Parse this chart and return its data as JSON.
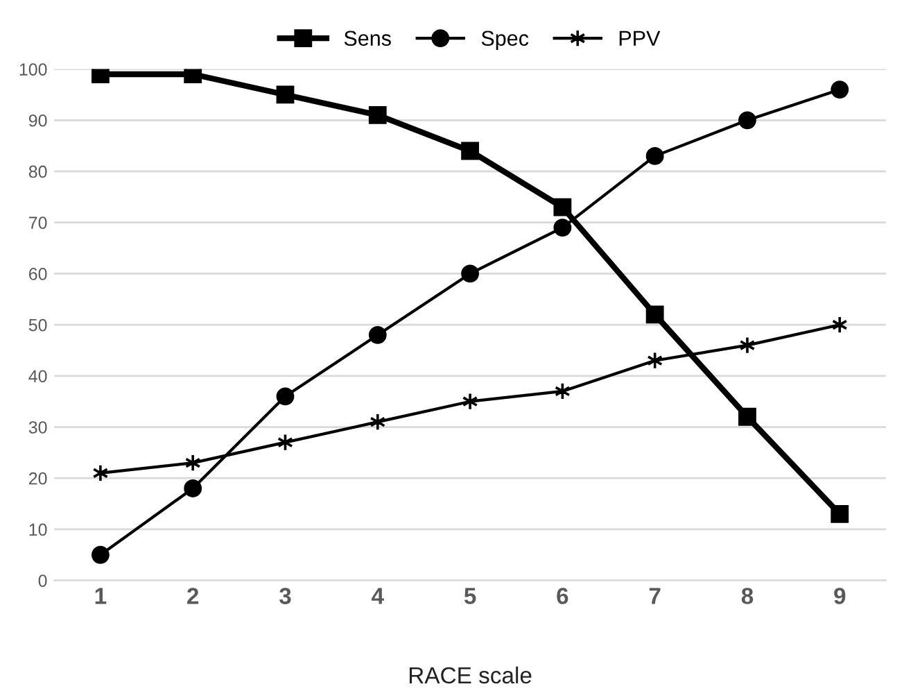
{
  "chart_data": {
    "type": "line",
    "xlabel": "RACE scale",
    "categories": [
      "1",
      "2",
      "3",
      "4",
      "5",
      "6",
      "7",
      "8",
      "9"
    ],
    "series": [
      {
        "name": "Sens",
        "color": "#000000",
        "marker": "square",
        "values": [
          99,
          99,
          95,
          91,
          84,
          73,
          52,
          32,
          13
        ]
      },
      {
        "name": "Spec",
        "color": "#000000",
        "marker": "circle",
        "values": [
          5,
          18,
          36,
          48,
          60,
          69,
          83,
          90,
          96
        ]
      },
      {
        "name": "PPV",
        "color": "#000000",
        "marker": "cross",
        "values": [
          21,
          23,
          27,
          31,
          35,
          37,
          43,
          46,
          50
        ]
      }
    ],
    "ylim": [
      0,
      100
    ],
    "yticks": [
      0,
      10,
      20,
      30,
      40,
      50,
      60,
      70,
      80,
      90,
      100
    ],
    "grid": "y",
    "legend": "top",
    "line_style": "solid"
  }
}
